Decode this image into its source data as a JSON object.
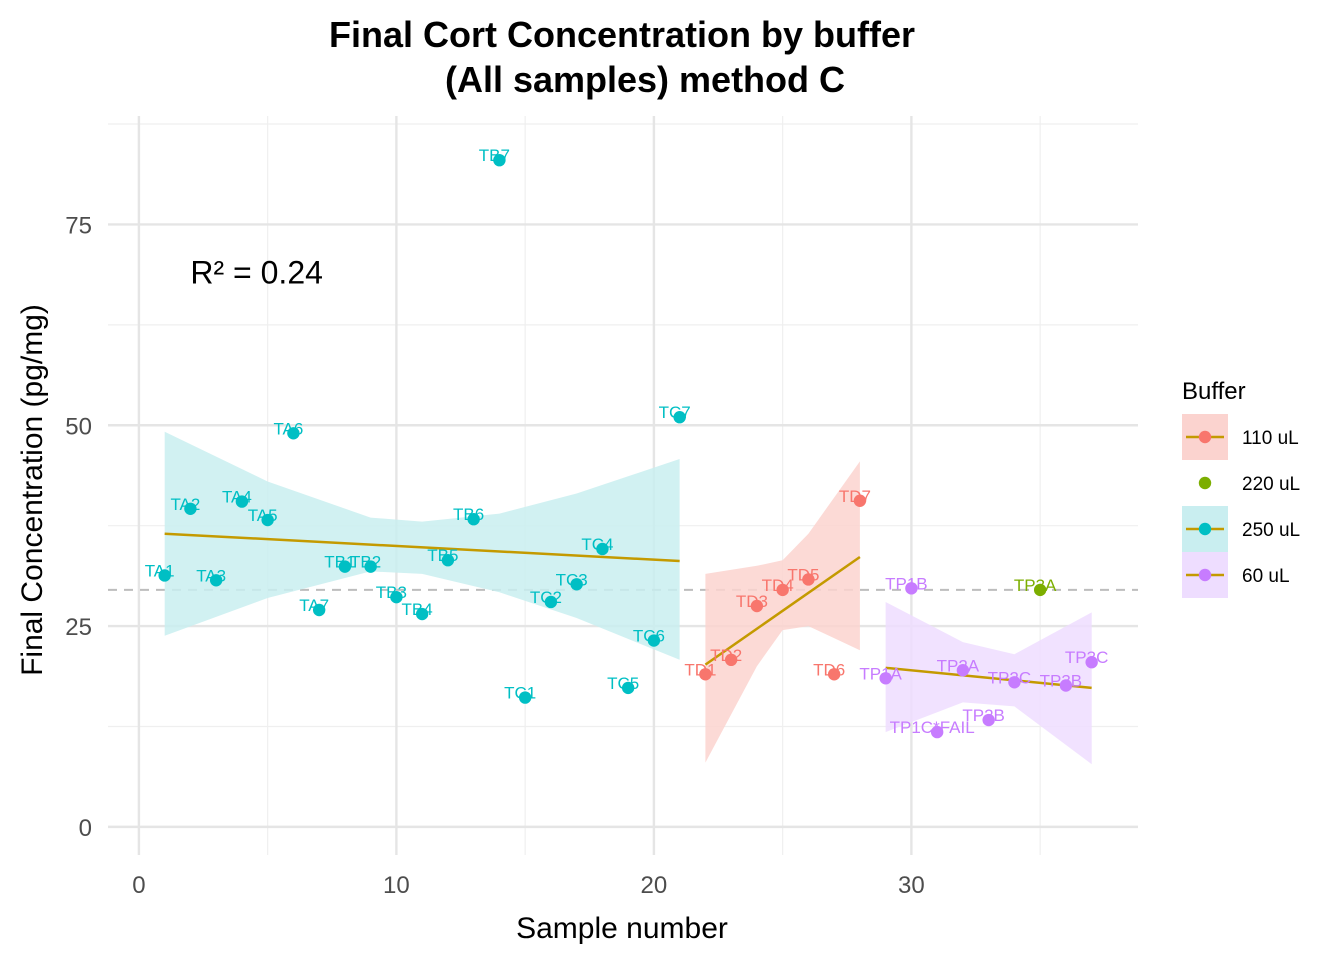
{
  "chart_data": {
    "type": "scatter",
    "title": "Final Cort Concentration by buffer",
    "subtitle": "(All samples) method C",
    "xlabel": "Sample number",
    "ylabel": "Final Concentration (pg/mg)",
    "xlim": [
      -1.2,
      38.8
    ],
    "ylim": [
      -3.5,
      88.5
    ],
    "x_ticks": [
      0,
      10,
      20,
      30
    ],
    "y_ticks": [
      0,
      25,
      50,
      75
    ],
    "grid": true,
    "reference_line": {
      "y": 29.5,
      "style": "dashed",
      "color": "#bdbdbd"
    },
    "annotation": {
      "text": "R² = 0.24",
      "x": 2,
      "y": 69
    },
    "legend": {
      "title": "Buffer",
      "placement": "right",
      "entries": [
        "110 uL",
        "220 uL",
        "250 uL",
        "60 uL"
      ]
    },
    "series": [
      {
        "name": "110 uL",
        "color": "#F8766D",
        "fill": "#FBD3CF",
        "points": [
          {
            "label": "TD1",
            "x": 22,
            "y": 19
          },
          {
            "label": "TD2",
            "x": 23,
            "y": 20.8
          },
          {
            "label": "TD3",
            "x": 24,
            "y": 27.5
          },
          {
            "label": "TD4",
            "x": 25,
            "y": 29.5
          },
          {
            "label": "TD5",
            "x": 26,
            "y": 30.8
          },
          {
            "label": "TD6",
            "x": 27,
            "y": 19
          },
          {
            "label": "TD7",
            "x": 28,
            "y": 40.6
          }
        ],
        "fit": {
          "x": [
            22,
            28
          ],
          "y": [
            20.2,
            33.6
          ]
        },
        "band": [
          {
            "x": 22,
            "lo": 8,
            "hi": 31.5
          },
          {
            "x": 24,
            "lo": 20,
            "hi": 32.5
          },
          {
            "x": 25,
            "lo": 24.5,
            "hi": 33.2
          },
          {
            "x": 26,
            "lo": 25,
            "hi": 36.5
          },
          {
            "x": 28,
            "lo": 22,
            "hi": 45.5
          }
        ]
      },
      {
        "name": "220 uL",
        "color": "#7CAE00",
        "points": [
          {
            "label": "TP3A",
            "x": 35,
            "y": 29.5
          }
        ]
      },
      {
        "name": "250 uL",
        "color": "#00BFC4",
        "fill": "#C9EEF0",
        "points": [
          {
            "label": "TA1",
            "x": 1,
            "y": 31.3
          },
          {
            "label": "TA2",
            "x": 2,
            "y": 39.6
          },
          {
            "label": "TA3",
            "x": 3,
            "y": 30.7
          },
          {
            "label": "TA4",
            "x": 4,
            "y": 40.5
          },
          {
            "label": "TA5",
            "x": 5,
            "y": 38.2
          },
          {
            "label": "TA6",
            "x": 6,
            "y": 49
          },
          {
            "label": "TA7",
            "x": 7,
            "y": 27
          },
          {
            "label": "TB1",
            "x": 8,
            "y": 32.4
          },
          {
            "label": "TB2",
            "x": 9,
            "y": 32.4
          },
          {
            "label": "TB3",
            "x": 10,
            "y": 28.6
          },
          {
            "label": "TB4",
            "x": 11,
            "y": 26.5
          },
          {
            "label": "TB5",
            "x": 12,
            "y": 33.2
          },
          {
            "label": "TB6",
            "x": 13,
            "y": 38.3
          },
          {
            "label": "TB7",
            "x": 14,
            "y": 83
          },
          {
            "label": "TC1",
            "x": 15,
            "y": 16.1
          },
          {
            "label": "TC2",
            "x": 16,
            "y": 28
          },
          {
            "label": "TC3",
            "x": 17,
            "y": 30.2
          },
          {
            "label": "TC4",
            "x": 18,
            "y": 34.6
          },
          {
            "label": "TC5",
            "x": 19,
            "y": 17.3
          },
          {
            "label": "TC6",
            "x": 20,
            "y": 23.2
          },
          {
            "label": "TC7",
            "x": 21,
            "y": 51
          }
        ],
        "fit": {
          "x": [
            1,
            21
          ],
          "y": [
            36.5,
            33.1
          ]
        },
        "band": [
          {
            "x": 1,
            "lo": 23.8,
            "hi": 49.2
          },
          {
            "x": 5,
            "lo": 28.5,
            "hi": 43
          },
          {
            "x": 9,
            "lo": 31.8,
            "hi": 38.5
          },
          {
            "x": 11,
            "lo": 31.5,
            "hi": 38
          },
          {
            "x": 14,
            "lo": 29.2,
            "hi": 39
          },
          {
            "x": 17,
            "lo": 26,
            "hi": 41.5
          },
          {
            "x": 21,
            "lo": 20.8,
            "hi": 45.8
          }
        ]
      },
      {
        "name": "60 uL",
        "color": "#C77CFF",
        "fill": "#EEDDFF",
        "points": [
          {
            "label": "TP1A",
            "x": 29,
            "y": 18.5
          },
          {
            "label": "TP1B",
            "x": 30,
            "y": 29.7
          },
          {
            "label": "TP1C*FAIL",
            "x": 31,
            "y": 11.8
          },
          {
            "label": "TP2A",
            "x": 32,
            "y": 19.5
          },
          {
            "label": "TP2B",
            "x": 33,
            "y": 13.3
          },
          {
            "label": "TP2C",
            "x": 34,
            "y": 18
          },
          {
            "label": "TP3B",
            "x": 36,
            "y": 17.6
          },
          {
            "label": "TP3C",
            "x": 37,
            "y": 20.5
          }
        ],
        "fit": {
          "x": [
            29,
            37
          ],
          "y": [
            19.8,
            17.3
          ]
        },
        "band": [
          {
            "x": 29,
            "lo": 11.8,
            "hi": 28
          },
          {
            "x": 32,
            "lo": 15.5,
            "hi": 23
          },
          {
            "x": 34,
            "lo": 15,
            "hi": 21.5
          },
          {
            "x": 37,
            "lo": 7.8,
            "hi": 26.7
          }
        ]
      }
    ]
  }
}
